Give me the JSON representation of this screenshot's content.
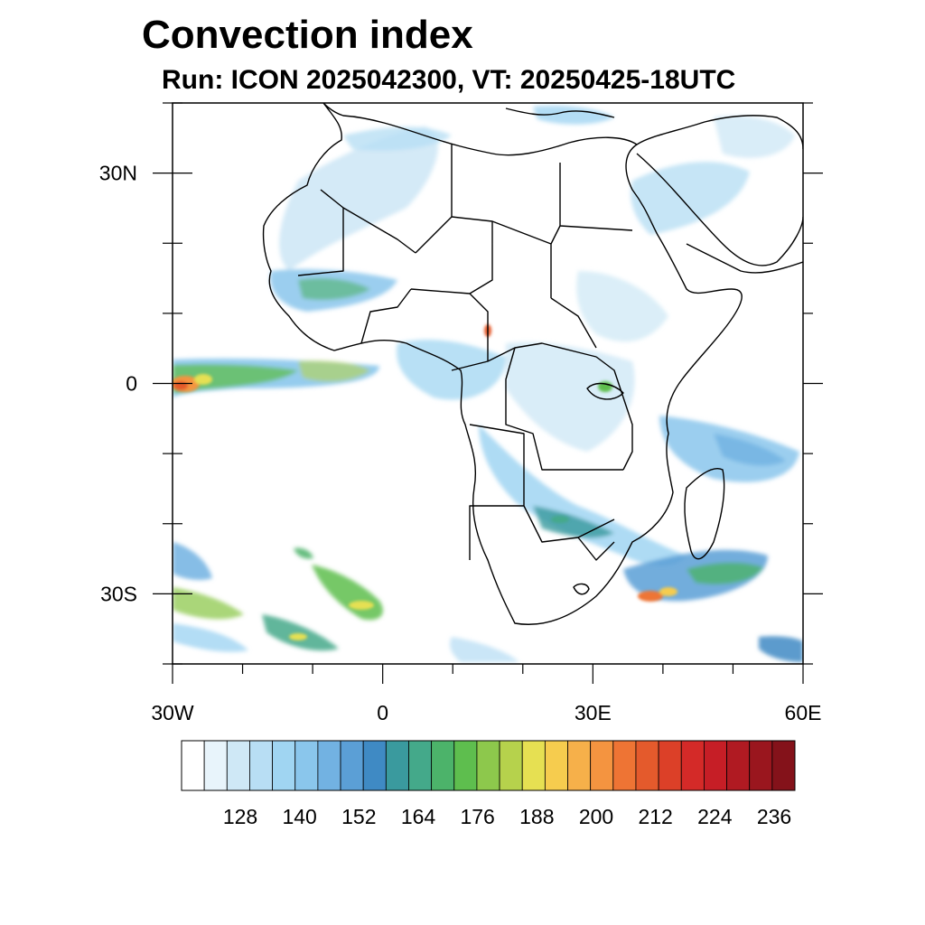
{
  "header": {
    "title": "Convection index",
    "subtitle": "Run: ICON 2025042300,  VT: 20250425-18UTC"
  },
  "map": {
    "region": "Africa",
    "lon_range": [
      -30,
      60
    ],
    "lat_range": [
      -40,
      40
    ],
    "lat_labels": [
      "30N",
      "0",
      "30S"
    ],
    "lat_values": [
      30,
      0,
      -30
    ],
    "lon_labels": [
      "30W",
      "0",
      "30E",
      "60E"
    ],
    "lon_values": [
      -30,
      0,
      30,
      60
    ]
  },
  "colorbar": {
    "labels": [
      "128",
      "140",
      "152",
      "164",
      "176",
      "188",
      "200",
      "212",
      "224",
      "236"
    ],
    "colors": [
      "#ffffff",
      "#e8f4fb",
      "#cfe8f6",
      "#b8def4",
      "#a0d5f2",
      "#8ac6ec",
      "#72b2e2",
      "#5b9fd6",
      "#3f8ac4",
      "#3a9a9e",
      "#44a98a",
      "#4cb36a",
      "#5ebe4e",
      "#8dc84c",
      "#b6d24c",
      "#e6e052",
      "#f6cc4e",
      "#f6b04a",
      "#f49440",
      "#ee7434",
      "#e45a2c",
      "#dc4028",
      "#d42a28",
      "#c61e26",
      "#b01a22",
      "#9a161e",
      "#84121a"
    ]
  }
}
